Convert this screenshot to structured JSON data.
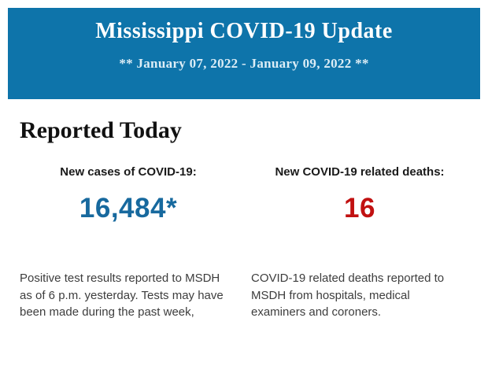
{
  "page": {
    "background_color": "#ffffff"
  },
  "header": {
    "background_color": "#0e74aa",
    "title": "Mississippi COVID-19 Update",
    "title_color": "#ffffff",
    "subtitle": "** January 07, 2022 - January 09, 2022 **",
    "subtitle_color": "#dcedf6"
  },
  "section": {
    "heading": "Reported Today"
  },
  "stats": [
    {
      "label": "New cases of COVID-19:",
      "value": "16,484*",
      "value_color": "#17699e",
      "description": "Positive test results reported to MSDH as of 6 p.m. yesterday. Tests may have been made during the past week,"
    },
    {
      "label": "New COVID-19 related deaths:",
      "value": "16",
      "value_color": "#c11111",
      "description": "COVID-19 related deaths reported to MSDH from hospitals, medical examiners and coroners."
    }
  ]
}
